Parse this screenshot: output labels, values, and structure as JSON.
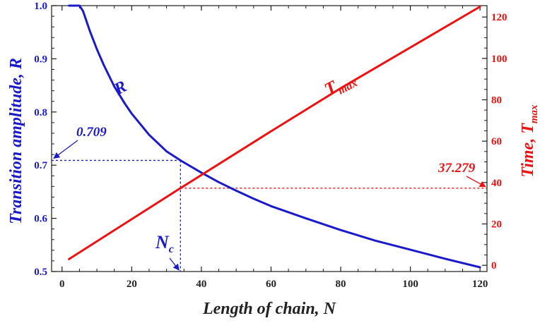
{
  "chart_data": {
    "type": "line",
    "xlabel": "Length of chain, N",
    "ylabel_left": "Transition amplitude, R",
    "ylabel_right": {
      "main": "Time, T",
      "sub": "max"
    },
    "xlim": [
      -3,
      122
    ],
    "ylim_left": [
      0.5,
      1.0
    ],
    "ylim_right": [
      -3,
      125.5
    ],
    "xticks": [
      0,
      20,
      40,
      60,
      80,
      100,
      120
    ],
    "yticks_left": [
      0.5,
      0.6,
      0.7,
      0.8,
      0.9,
      1.0
    ],
    "yticks_right": [
      0,
      20,
      40,
      60,
      80,
      100,
      120
    ],
    "grid": false,
    "series": [
      {
        "name": "R",
        "axis": "left",
        "color": "#1a1acc",
        "x": [
          2,
          5,
          6,
          8,
          10,
          12,
          15,
          18,
          20,
          25,
          30,
          34,
          35,
          40,
          45,
          50,
          55,
          60,
          70,
          80,
          90,
          100,
          110,
          120
        ],
        "y": [
          1.0,
          1.0,
          0.99,
          0.952,
          0.918,
          0.888,
          0.848,
          0.816,
          0.797,
          0.757,
          0.726,
          0.709,
          0.705,
          0.686,
          0.668,
          0.652,
          0.637,
          0.623,
          0.6,
          0.578,
          0.558,
          0.541,
          0.524,
          0.508
        ]
      },
      {
        "name": "T_max",
        "axis": "right",
        "color": "#ee1111",
        "x": [
          2,
          34,
          60,
          80,
          100,
          120
        ],
        "y": [
          3,
          37.279,
          64.8,
          85.6,
          105.3,
          125
        ]
      }
    ],
    "annotations": {
      "r_label": "R",
      "t_label": {
        "main": "T",
        "sub": "max"
      },
      "nc_label": {
        "main": "N",
        "sub": "c"
      },
      "r_value": "0.709",
      "t_value": "37.279",
      "nc_x": 34,
      "nc_r": 0.709,
      "nc_t": 37.279
    }
  }
}
